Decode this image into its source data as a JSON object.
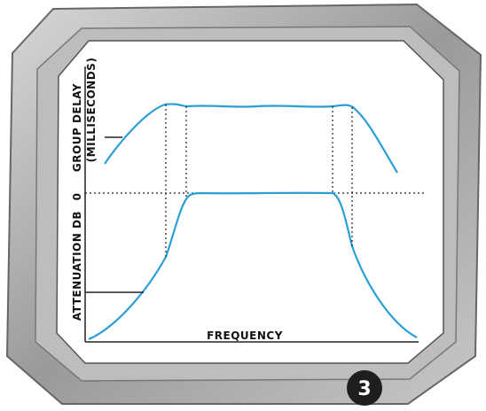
{
  "labels": {
    "group_delay": "GROUP DELAY",
    "milliseconds": "(MILLISECONDS)",
    "zero": "0",
    "attenuation": "ATTENUATION DB",
    "frequency": "FREQUENCY"
  },
  "badge": "3"
}
